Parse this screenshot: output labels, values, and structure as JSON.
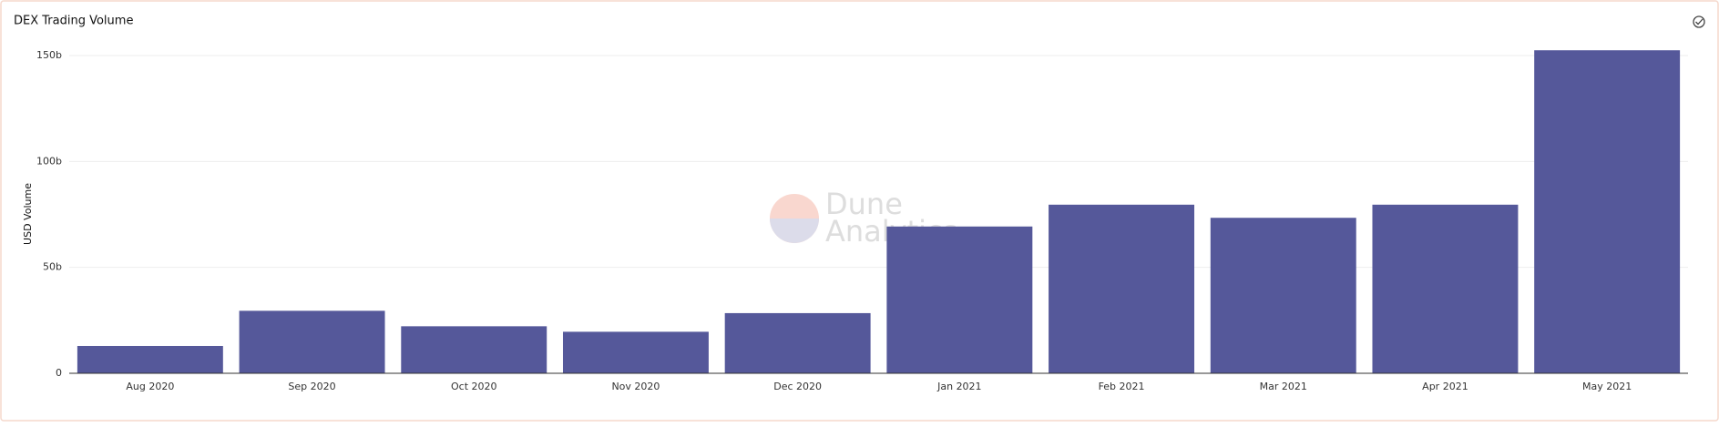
{
  "chart_data": {
    "type": "bar",
    "title": "DEX Trading Volume",
    "y_label": "USD Volume",
    "watermark": [
      "Dune",
      "Analytics"
    ],
    "categories": [
      "Aug 2020",
      "Sep 2020",
      "Oct 2020",
      "Nov 2020",
      "Dec 2020",
      "Jan 2021",
      "Feb 2021",
      "Mar 2021",
      "Apr 2021",
      "May 2021"
    ],
    "values": [
      12.9,
      29.5,
      22.2,
      19.6,
      28.4,
      69.3,
      79.6,
      73.4,
      79.6,
      152.5
    ],
    "color": "#55589a",
    "ylim": [
      0,
      155
    ],
    "yticks": [
      0,
      {
        "value": 50,
        "label": "50b"
      },
      {
        "value": 100,
        "label": "100b"
      },
      {
        "value": 150,
        "label": "150b"
      }
    ],
    "grid": true
  }
}
